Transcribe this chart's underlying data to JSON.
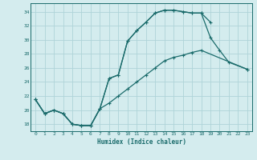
{
  "title": "",
  "xlabel": "Humidex (Indice chaleur)",
  "bg_color": "#d4ecee",
  "grid_color": "#aed4d8",
  "line_color": "#1a6b6b",
  "xlim": [
    -0.5,
    23.5
  ],
  "ylim": [
    17.0,
    35.2
  ],
  "xticks": [
    0,
    1,
    2,
    3,
    4,
    5,
    6,
    7,
    8,
    9,
    10,
    11,
    12,
    13,
    14,
    15,
    16,
    17,
    18,
    19,
    20,
    21,
    22,
    23
  ],
  "yticks": [
    18,
    20,
    22,
    24,
    26,
    28,
    30,
    32,
    34
  ],
  "l1x": [
    0,
    1,
    2,
    3,
    4,
    5,
    6,
    7,
    8,
    9,
    10,
    11,
    12,
    13,
    14,
    15,
    16,
    17,
    18,
    19
  ],
  "l1y": [
    21.5,
    19.5,
    20.0,
    19.5,
    18.0,
    17.8,
    17.8,
    20.2,
    24.5,
    25.0,
    29.8,
    31.3,
    32.5,
    33.8,
    34.2,
    34.2,
    34.0,
    33.8,
    33.8,
    32.5
  ],
  "l2x": [
    0,
    1,
    2,
    3,
    4,
    5,
    6,
    7,
    8,
    9,
    10,
    11,
    12,
    13,
    14,
    15,
    16,
    17,
    18,
    19,
    20,
    21,
    23
  ],
  "l2y": [
    21.5,
    19.5,
    20.0,
    19.5,
    18.0,
    17.8,
    17.8,
    20.2,
    24.5,
    25.0,
    29.8,
    31.3,
    32.5,
    33.8,
    34.2,
    34.2,
    34.0,
    33.8,
    33.8,
    30.3,
    28.5,
    26.8,
    25.8
  ],
  "l3x": [
    0,
    1,
    2,
    3,
    4,
    5,
    6,
    7,
    8,
    9,
    10,
    11,
    12,
    13,
    14,
    15,
    16,
    17,
    18,
    23
  ],
  "l3y": [
    21.5,
    19.5,
    20.0,
    19.5,
    18.0,
    17.8,
    17.8,
    20.2,
    21.0,
    22.0,
    23.0,
    24.0,
    25.0,
    26.0,
    27.0,
    27.5,
    27.8,
    28.2,
    28.5,
    25.8
  ],
  "lw": 0.9,
  "ms": 3.5
}
